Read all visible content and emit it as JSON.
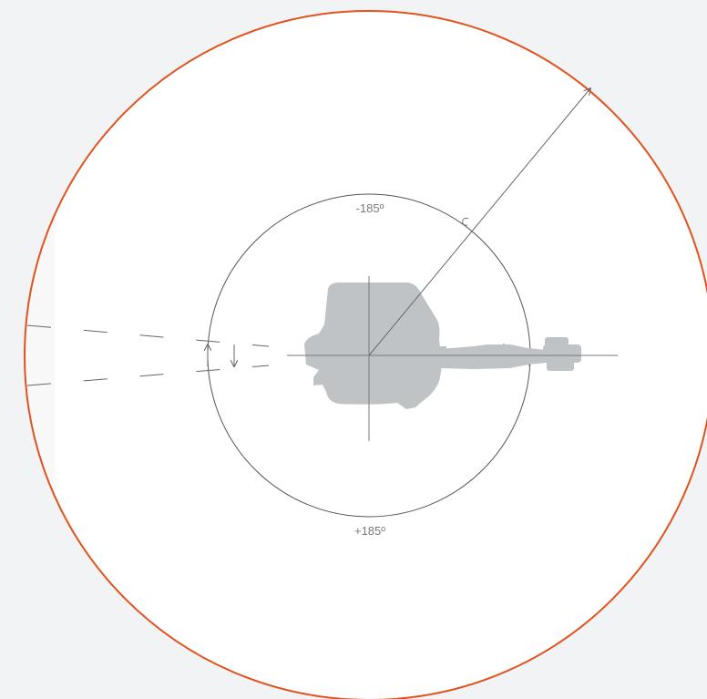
{
  "colors": {
    "background": "#f2f3f4",
    "canvas": "#ffffff",
    "outer_range_ring": "#e0521e",
    "inner_ring": "#555555",
    "crosshair": "#777777",
    "vehicle_silhouette": "#c0c3c6",
    "label": "#7a7a7a"
  },
  "labels": {
    "top_angle": "-185º",
    "bottom_angle": "+185º"
  },
  "icons": {
    "vector_arrow": "arrow-head",
    "dimension_arrows": "arrow-head"
  }
}
